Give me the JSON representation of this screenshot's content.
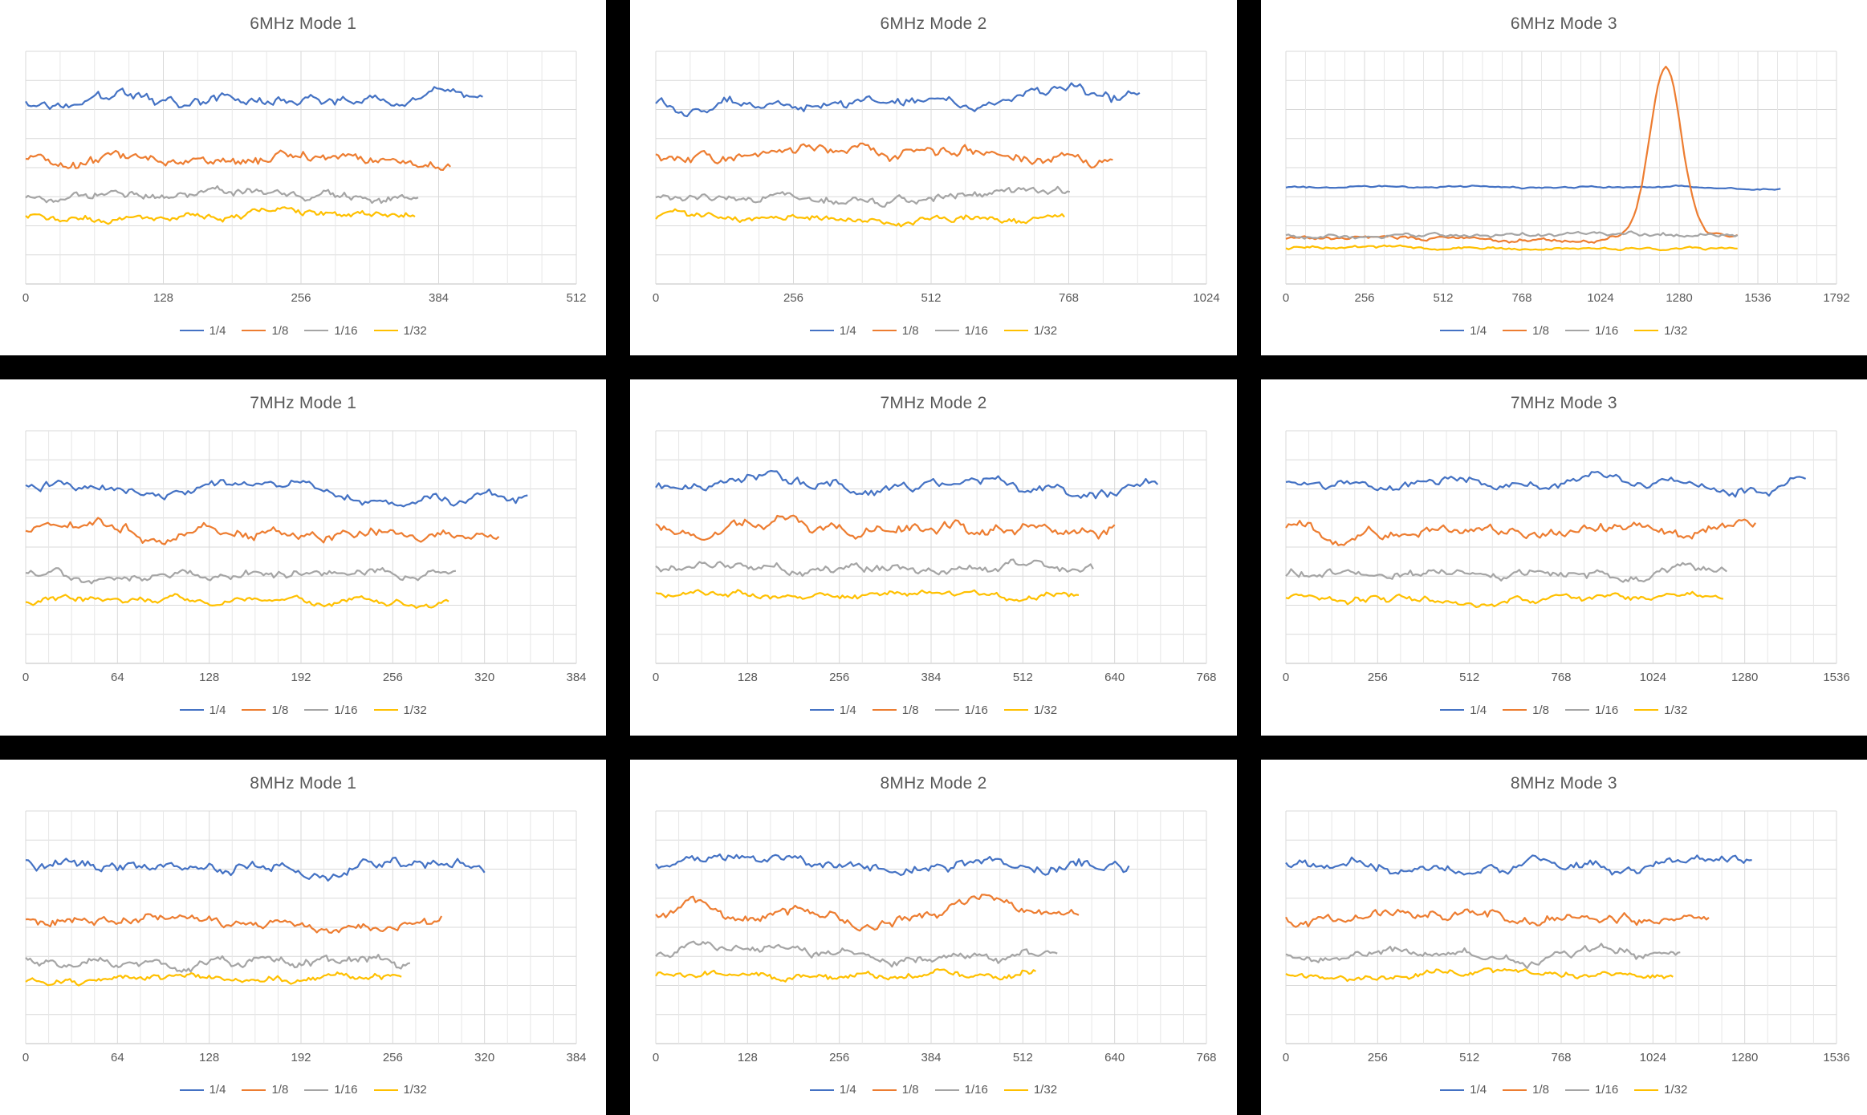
{
  "page": {
    "background": "#000000"
  },
  "colors": {
    "panel_bg": "#FFFFFF",
    "title": "#595959",
    "tick": "#595959",
    "grid_minor": "#E7E7E7",
    "grid_major": "#D9D9D9",
    "axis": "#BFBFBF",
    "blue": "#4472C4",
    "orange": "#ED7D31",
    "gray": "#A5A5A5",
    "yellow": "#FFC000"
  },
  "legend_labels": [
    "1/4",
    "1/8",
    "1/16",
    "1/32"
  ],
  "chart_data": [
    {
      "type": "line",
      "title": "6MHz Mode 1",
      "xlabel": "",
      "ylabel": "",
      "x_min": 0,
      "x_max": 512,
      "x_ticks": [
        0,
        128,
        256,
        384,
        512
      ],
      "y_axis_labels_visible": false,
      "grid": true,
      "legend_position": "bottom",
      "series": [
        {
          "name": "1/4",
          "color": "#4472C4",
          "level": 0.21,
          "noise": 0.032,
          "x_end": 425
        },
        {
          "name": "1/8",
          "color": "#ED7D31",
          "level": 0.46,
          "noise": 0.032,
          "x_end": 395
        },
        {
          "name": "1/16",
          "color": "#A5A5A5",
          "level": 0.625,
          "noise": 0.026,
          "x_end": 365
        },
        {
          "name": "1/32",
          "color": "#FFC000",
          "level": 0.715,
          "noise": 0.02,
          "x_end": 362
        }
      ]
    },
    {
      "type": "line",
      "title": "6MHz Mode 2",
      "xlabel": "",
      "ylabel": "",
      "x_min": 0,
      "x_max": 1024,
      "x_ticks": [
        0,
        256,
        512,
        768,
        1024
      ],
      "y_axis_labels_visible": false,
      "grid": true,
      "legend_position": "bottom",
      "series": [
        {
          "name": "1/4",
          "color": "#4472C4",
          "level": 0.21,
          "noise": 0.034,
          "x_end": 900
        },
        {
          "name": "1/8",
          "color": "#ED7D31",
          "level": 0.45,
          "noise": 0.032,
          "x_end": 850
        },
        {
          "name": "1/16",
          "color": "#A5A5A5",
          "level": 0.625,
          "noise": 0.026,
          "x_end": 770
        },
        {
          "name": "1/32",
          "color": "#FFC000",
          "level": 0.71,
          "noise": 0.02,
          "x_end": 760
        }
      ]
    },
    {
      "type": "line",
      "title": "6MHz Mode 3",
      "xlabel": "",
      "ylabel": "",
      "x_min": 0,
      "x_max": 1792,
      "x_ticks": [
        0,
        256,
        512,
        768,
        1024,
        1280,
        1536,
        1792
      ],
      "y_axis_labels_visible": false,
      "grid": true,
      "legend_position": "bottom",
      "annotation": "1/8 series shows a large isolated peak centered near x=1235; 1/4 series is nearly flat mid-plot; 1/16 and 1/32 run flat near the bottom",
      "series": [
        {
          "name": "1/4",
          "color": "#4472C4",
          "level": 0.585,
          "noise": 0.006,
          "x_end": 1610
        },
        {
          "name": "1/8",
          "color": "#ED7D31",
          "level": 0.805,
          "noise": 0.012,
          "x_end": 1470,
          "peak": {
            "x": 1235,
            "sigma": 72,
            "rise": 0.73
          }
        },
        {
          "name": "1/16",
          "color": "#A5A5A5",
          "level": 0.79,
          "noise": 0.013,
          "x_end": 1470
        },
        {
          "name": "1/32",
          "color": "#FFC000",
          "level": 0.845,
          "noise": 0.008,
          "x_end": 1470
        }
      ]
    },
    {
      "type": "line",
      "title": "7MHz Mode 1",
      "xlabel": "",
      "ylabel": "",
      "x_min": 0,
      "x_max": 384,
      "x_ticks": [
        0,
        64,
        128,
        192,
        256,
        320,
        384
      ],
      "y_axis_labels_visible": false,
      "grid": true,
      "legend_position": "bottom",
      "series": [
        {
          "name": "1/4",
          "color": "#4472C4",
          "level": 0.25,
          "noise": 0.032,
          "x_end": 350
        },
        {
          "name": "1/8",
          "color": "#ED7D31",
          "level": 0.44,
          "noise": 0.034,
          "x_end": 330
        },
        {
          "name": "1/16",
          "color": "#A5A5A5",
          "level": 0.615,
          "noise": 0.026,
          "x_end": 300
        },
        {
          "name": "1/32",
          "color": "#FFC000",
          "level": 0.73,
          "noise": 0.02,
          "x_end": 295
        }
      ]
    },
    {
      "type": "line",
      "title": "7MHz Mode 2",
      "xlabel": "",
      "ylabel": "",
      "x_min": 0,
      "x_max": 768,
      "x_ticks": [
        0,
        128,
        256,
        384,
        512,
        640,
        768
      ],
      "y_axis_labels_visible": false,
      "grid": true,
      "legend_position": "bottom",
      "series": [
        {
          "name": "1/4",
          "color": "#4472C4",
          "level": 0.24,
          "noise": 0.034,
          "x_end": 700
        },
        {
          "name": "1/8",
          "color": "#ED7D31",
          "level": 0.42,
          "noise": 0.036,
          "x_end": 640
        },
        {
          "name": "1/16",
          "color": "#A5A5A5",
          "level": 0.6,
          "noise": 0.028,
          "x_end": 610
        },
        {
          "name": "1/32",
          "color": "#FFC000",
          "level": 0.7,
          "noise": 0.02,
          "x_end": 590
        }
      ]
    },
    {
      "type": "line",
      "title": "7MHz Mode 3",
      "xlabel": "",
      "ylabel": "",
      "x_min": 0,
      "x_max": 1536,
      "x_ticks": [
        0,
        256,
        512,
        768,
        1024,
        1280,
        1536
      ],
      "y_axis_labels_visible": false,
      "grid": true,
      "legend_position": "bottom",
      "series": [
        {
          "name": "1/4",
          "color": "#4472C4",
          "level": 0.23,
          "noise": 0.032,
          "x_end": 1450
        },
        {
          "name": "1/8",
          "color": "#ED7D31",
          "level": 0.42,
          "noise": 0.034,
          "x_end": 1310
        },
        {
          "name": "1/16",
          "color": "#A5A5A5",
          "level": 0.615,
          "noise": 0.026,
          "x_end": 1230
        },
        {
          "name": "1/32",
          "color": "#FFC000",
          "level": 0.72,
          "noise": 0.02,
          "x_end": 1220
        }
      ]
    },
    {
      "type": "line",
      "title": "8MHz Mode 1",
      "xlabel": "",
      "ylabel": "",
      "x_min": 0,
      "x_max": 384,
      "x_ticks": [
        0,
        64,
        128,
        192,
        256,
        320,
        384
      ],
      "y_axis_labels_visible": false,
      "grid": true,
      "legend_position": "bottom",
      "series": [
        {
          "name": "1/4",
          "color": "#4472C4",
          "level": 0.23,
          "noise": 0.034,
          "x_end": 320
        },
        {
          "name": "1/8",
          "color": "#ED7D31",
          "level": 0.47,
          "noise": 0.03,
          "x_end": 290
        },
        {
          "name": "1/16",
          "color": "#A5A5A5",
          "level": 0.635,
          "noise": 0.028,
          "x_end": 268
        },
        {
          "name": "1/32",
          "color": "#FFC000",
          "level": 0.73,
          "noise": 0.02,
          "x_end": 262
        }
      ]
    },
    {
      "type": "line",
      "title": "8MHz Mode 2",
      "xlabel": "",
      "ylabel": "",
      "x_min": 0,
      "x_max": 768,
      "x_ticks": [
        0,
        128,
        256,
        384,
        512,
        640,
        768
      ],
      "y_axis_labels_visible": false,
      "grid": true,
      "legend_position": "bottom",
      "series": [
        {
          "name": "1/4",
          "color": "#4472C4",
          "level": 0.22,
          "noise": 0.034,
          "x_end": 660
        },
        {
          "name": "1/8",
          "color": "#ED7D31",
          "level": 0.44,
          "noise": 0.032,
          "x_end": 590
        },
        {
          "name": "1/16",
          "color": "#A5A5A5",
          "level": 0.62,
          "noise": 0.028,
          "x_end": 560
        },
        {
          "name": "1/32",
          "color": "#FFC000",
          "level": 0.7,
          "noise": 0.022,
          "x_end": 530
        }
      ]
    },
    {
      "type": "line",
      "title": "8MHz Mode 3",
      "xlabel": "",
      "ylabel": "",
      "x_min": 0,
      "x_max": 1536,
      "x_ticks": [
        0,
        256,
        512,
        768,
        1024,
        1280,
        1536
      ],
      "y_axis_labels_visible": false,
      "grid": true,
      "legend_position": "bottom",
      "series": [
        {
          "name": "1/4",
          "color": "#4472C4",
          "level": 0.22,
          "noise": 0.032,
          "x_end": 1300
        },
        {
          "name": "1/8",
          "color": "#ED7D31",
          "level": 0.45,
          "noise": 0.03,
          "x_end": 1180
        },
        {
          "name": "1/16",
          "color": "#A5A5A5",
          "level": 0.62,
          "noise": 0.026,
          "x_end": 1100
        },
        {
          "name": "1/32",
          "color": "#FFC000",
          "level": 0.7,
          "noise": 0.02,
          "x_end": 1080
        }
      ]
    }
  ]
}
